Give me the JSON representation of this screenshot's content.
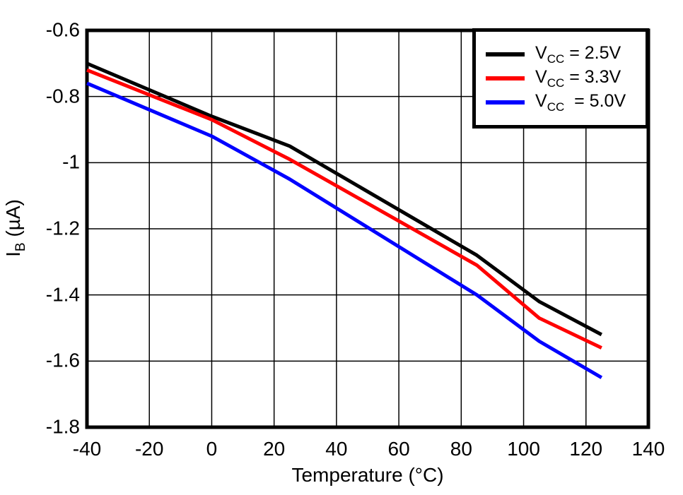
{
  "chart_data": {
    "type": "line",
    "title": "",
    "xlabel": "Temperature (°C)",
    "ylabel_parts": {
      "prefix": "I",
      "sub": "B",
      "rest": " (µA)"
    },
    "xlim": [
      -40,
      140
    ],
    "ylim": [
      -1.8,
      -0.6
    ],
    "x_ticks": [
      -40,
      -20,
      0,
      20,
      40,
      60,
      80,
      100,
      120,
      140
    ],
    "y_ticks": [
      -0.6,
      -0.8,
      -1,
      -1.2,
      -1.4,
      -1.6,
      -1.8
    ],
    "y_tick_labels": [
      "-0.6",
      "-0.8",
      "-1",
      "-1.2",
      "-1.4",
      "-1.6",
      "-1.8"
    ],
    "grid": true,
    "legend_position": "top-right",
    "x": [
      -40,
      0,
      25,
      85,
      105,
      125
    ],
    "series": [
      {
        "name": "VCC = 2.5V",
        "color": "#000000",
        "values": [
          -0.7,
          -0.86,
          -0.95,
          -1.28,
          -1.42,
          -1.52
        ]
      },
      {
        "name": "VCC = 3.3V",
        "color": "#ff0000",
        "values": [
          -0.72,
          -0.87,
          -0.99,
          -1.31,
          -1.47,
          -1.56
        ]
      },
      {
        "name": "VCC = 5.0V",
        "color": "#0000ff",
        "values": [
          -0.76,
          -0.92,
          -1.05,
          -1.4,
          -1.54,
          -1.65
        ]
      }
    ],
    "legend_entries": [
      {
        "prefix": "V",
        "sub": "CC",
        "rest": " = 2.5V",
        "color": "#000000"
      },
      {
        "prefix": "V",
        "sub": "CC",
        "rest": " = 3.3V",
        "color": "#ff0000"
      },
      {
        "prefix": "V",
        "sub": "CC",
        "rest": "  = 5.0V",
        "color": "#0000ff"
      }
    ],
    "colors": {
      "axis": "#000000",
      "grid": "#000000",
      "background": "#ffffff"
    }
  }
}
